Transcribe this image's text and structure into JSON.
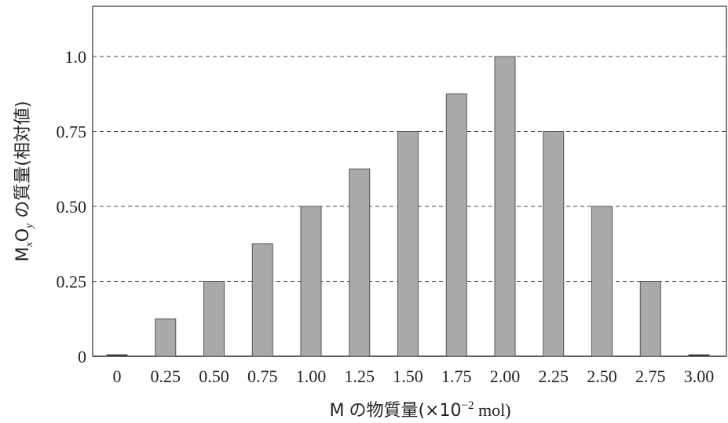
{
  "chart_data": {
    "type": "bar",
    "categories": [
      "0",
      "0.25",
      "0.50",
      "0.75",
      "1.00",
      "1.25",
      "1.50",
      "1.75",
      "2.00",
      "2.25",
      "2.50",
      "2.75",
      "3.00"
    ],
    "values": [
      0,
      0.125,
      0.25,
      0.375,
      0.5,
      0.625,
      0.75,
      0.875,
      1.0,
      0.75,
      0.5,
      0.25,
      0
    ],
    "y_ticks": [
      0,
      0.25,
      0.5,
      0.75,
      1.0
    ],
    "y_tick_labels": [
      "0",
      "0.25",
      "0.50",
      "0.75",
      "1.0"
    ],
    "ylim": [
      0,
      1.2
    ],
    "xlabel": {
      "prefix": "M",
      "text": "の物質量(×10",
      "exponent": "−2",
      "suffix": " mol)"
    },
    "ylabel": {
      "m": "M",
      "m_sub": "x",
      "o": "O",
      "o_sub": "y",
      "text": " の質量(相対値)"
    },
    "grid": "horizontal dashed",
    "title": "",
    "colors": {
      "bar_fill": "#a9a9a9",
      "bar_stroke": "#555555",
      "axis": "#333333",
      "gridline": "#444444"
    }
  }
}
